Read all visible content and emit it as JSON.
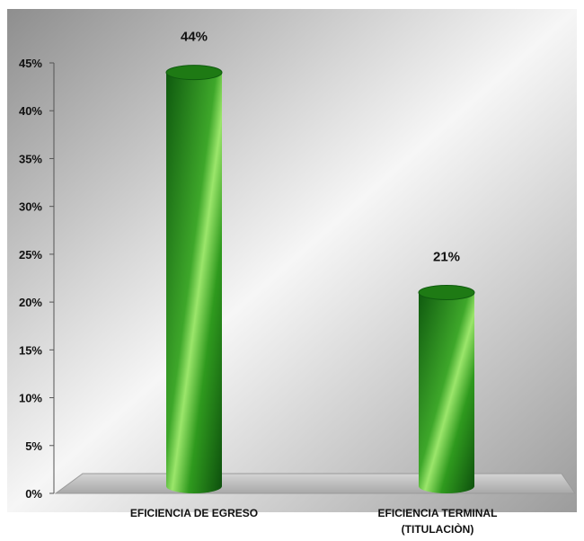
{
  "chart_data": {
    "type": "bar",
    "categories": [
      [
        "EFICIENCIA DE EGRESO"
      ],
      [
        "EFICIENCIA TERMINAL",
        "(TITULACIÒN)"
      ]
    ],
    "values": [
      44,
      21
    ],
    "data_labels": [
      "44%",
      "21%"
    ],
    "ylim": [
      0,
      45
    ],
    "y_ticks": [
      0,
      5,
      10,
      15,
      20,
      25,
      30,
      35,
      40,
      45
    ],
    "y_tick_labels": [
      "0%",
      "5%",
      "10%",
      "15%",
      "20%",
      "25%",
      "30%",
      "35%",
      "40%",
      "45%"
    ],
    "colors": {
      "bar_dark": "#0f5a0f",
      "bar_mid": "#2f9a1e",
      "bar_light": "#8fe062",
      "bar_top": "#1e7a14",
      "floor": "#bdbdbd",
      "background_light": "#f4f4f4",
      "background_dark": "#9a9a9a"
    },
    "grid": false,
    "legend": "none",
    "style": "3d-cylinder"
  }
}
